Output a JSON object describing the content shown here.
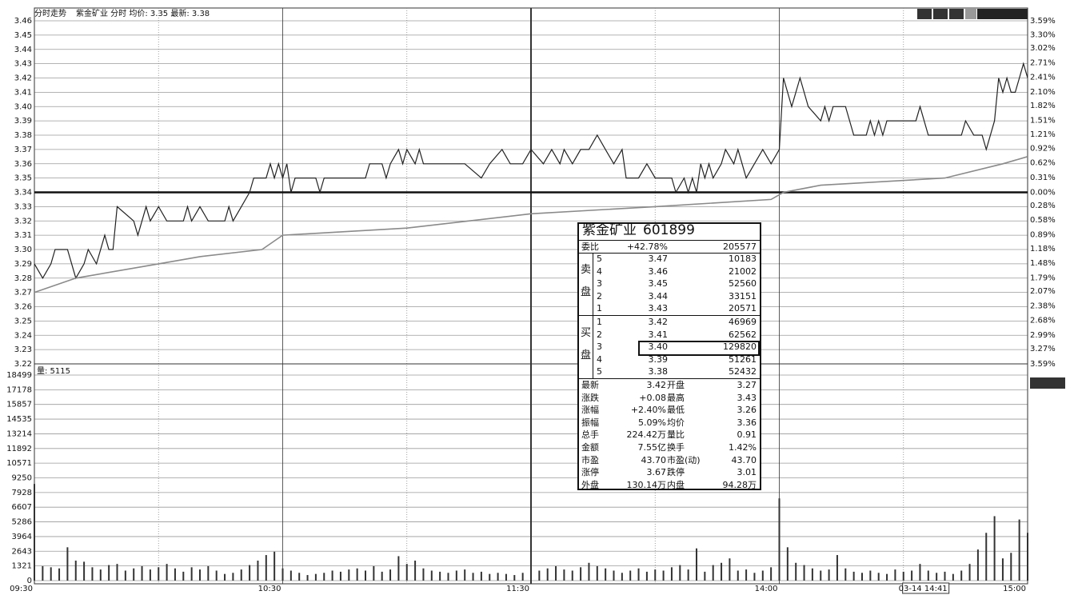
{
  "chart_data": [
    {
      "type": "line",
      "title": "分时走势",
      "subtitle": "紫金矿业 分时 均价: 3.35 最新: 3.38",
      "xlim": [
        0,
        240
      ],
      "ylim": [
        3.22,
        3.46
      ],
      "yticks": [
        3.22,
        3.23,
        3.24,
        3.25,
        3.26,
        3.27,
        3.28,
        3.29,
        {
          "value": 3.3,
          "label": "3.30"
        },
        3.31,
        3.32,
        3.33,
        3.34,
        3.35,
        3.36,
        3.37,
        3.38,
        3.39,
        {
          "value": 3.4,
          "label": "3.40"
        },
        3.41,
        3.42,
        3.43,
        3.44,
        3.45,
        3.46
      ],
      "y2lim": [
        -3.59,
        3.59
      ],
      "y2ticks": [
        {
          "value": -3.59,
          "label": "3.59%"
        },
        {
          "value": -3.27,
          "label": "3.27%"
        },
        {
          "value": -2.99,
          "label": "2.99%"
        },
        {
          "value": -2.68,
          "label": "2.68%"
        },
        {
          "value": -2.38,
          "label": "2.38%"
        },
        {
          "value": -2.07,
          "label": "2.07%"
        },
        {
          "value": -1.79,
          "label": "1.79%"
        },
        {
          "value": -1.48,
          "label": "1.48%"
        },
        {
          "value": -1.18,
          "label": "1.18%"
        },
        {
          "value": -0.89,
          "label": "0.89%"
        },
        {
          "value": -0.58,
          "label": "0.58%"
        },
        {
          "value": -0.28,
          "label": "0.28%"
        },
        {
          "value": 0,
          "label": "0.00%"
        },
        {
          "value": 0.31,
          "label": "0.31%"
        },
        {
          "value": 0.62,
          "label": "0.62%"
        },
        {
          "value": 0.92,
          "label": "0.92%"
        },
        {
          "value": 1.21,
          "label": "1.21%"
        },
        {
          "value": 1.51,
          "label": "1.51%"
        },
        {
          "value": 1.82,
          "label": "1.82%"
        },
        {
          "value": 2.1,
          "label": "2.10%"
        },
        {
          "value": 2.41,
          "label": "2.41%"
        },
        {
          "value": 2.71,
          "label": "2.71%"
        },
        {
          "value": 3.02,
          "label": "3.02%"
        },
        {
          "value": 3.3,
          "label": "3.30%"
        },
        {
          "value": 3.59,
          "label": "3.59%"
        }
      ],
      "reference_line": 3.34,
      "grid": true,
      "series": [
        {
          "color": "#222222",
          "x": [
            0,
            2,
            4,
            5,
            8,
            10,
            12,
            13,
            15,
            17,
            18,
            19,
            20,
            24,
            25,
            27,
            28,
            30,
            32,
            36,
            37,
            38,
            40,
            42,
            46,
            47,
            48,
            50,
            52,
            53,
            56,
            57,
            58,
            59,
            60,
            61,
            62,
            63,
            68,
            69,
            70,
            80,
            81,
            84,
            85,
            86,
            88,
            89,
            90,
            92,
            93,
            94,
            104,
            108,
            110,
            113,
            115,
            118,
            120,
            123,
            125,
            127,
            128,
            130,
            132,
            134,
            136,
            138,
            140,
            142,
            143,
            146,
            148,
            150,
            154,
            155,
            157,
            158,
            159,
            160,
            161,
            162,
            163,
            164,
            166,
            167,
            169,
            170,
            172,
            174,
            176,
            178,
            180,
            181,
            183,
            185,
            187,
            190,
            191,
            192,
            193,
            196,
            198,
            201,
            202,
            203,
            204,
            205,
            206,
            213,
            214,
            216,
            224,
            225,
            227,
            229,
            230,
            232,
            233,
            234,
            235,
            236,
            237,
            238,
            239,
            240
          ],
          "values": [
            3.29,
            3.28,
            3.29,
            3.3,
            3.3,
            3.28,
            3.29,
            3.3,
            3.29,
            3.31,
            3.3,
            3.3,
            3.33,
            3.32,
            3.31,
            3.33,
            3.32,
            3.33,
            3.32,
            3.32,
            3.33,
            3.32,
            3.33,
            3.32,
            3.32,
            3.33,
            3.32,
            3.33,
            3.34,
            3.35,
            3.35,
            3.36,
            3.35,
            3.36,
            3.35,
            3.36,
            3.34,
            3.35,
            3.35,
            3.34,
            3.35,
            3.35,
            3.36,
            3.36,
            3.35,
            3.36,
            3.37,
            3.36,
            3.37,
            3.36,
            3.37,
            3.36,
            3.36,
            3.35,
            3.36,
            3.37,
            3.36,
            3.36,
            3.37,
            3.36,
            3.37,
            3.36,
            3.37,
            3.36,
            3.37,
            3.37,
            3.38,
            3.37,
            3.36,
            3.37,
            3.35,
            3.35,
            3.36,
            3.35,
            3.35,
            3.34,
            3.35,
            3.34,
            3.35,
            3.34,
            3.36,
            3.35,
            3.36,
            3.35,
            3.36,
            3.37,
            3.36,
            3.37,
            3.35,
            3.36,
            3.37,
            3.36,
            3.37,
            3.42,
            3.4,
            3.42,
            3.4,
            3.39,
            3.4,
            3.39,
            3.4,
            3.4,
            3.38,
            3.38,
            3.39,
            3.38,
            3.39,
            3.38,
            3.39,
            3.39,
            3.4,
            3.38,
            3.38,
            3.39,
            3.38,
            3.38,
            3.37,
            3.39,
            3.42,
            3.41,
            3.42,
            3.41,
            3.41,
            3.42,
            3.43,
            3.42
          ]
        },
        {
          "color": "#8a8a8a",
          "x": [
            0,
            10,
            30,
            40,
            55,
            60,
            90,
            120,
            150,
            178,
            181,
            190,
            220,
            234,
            240
          ],
          "values": [
            3.27,
            3.28,
            3.29,
            3.295,
            3.3,
            3.31,
            3.315,
            3.325,
            3.33,
            3.335,
            3.34,
            3.345,
            3.35,
            3.36,
            3.365
          ]
        }
      ],
      "cursor": {
        "x": 221,
        "label": "03-14 14:41"
      }
    },
    {
      "type": "bar",
      "title": "量: 5115",
      "color": "#333333",
      "xlim": [
        0,
        240
      ],
      "xticks": [
        {
          "value": 0,
          "label": "09:30"
        },
        {
          "value": 60,
          "label": "10:30"
        },
        {
          "value": 120,
          "label": "11:30"
        },
        {
          "value": 180,
          "label": "14:00"
        },
        {
          "value": 240,
          "label": "15:00"
        }
      ],
      "ylim": [
        0,
        18499
      ],
      "yticks": [
        0,
        1321,
        2643,
        3964,
        5286,
        6607,
        7928,
        9250,
        10571,
        11892,
        13214,
        14535,
        15857,
        17178,
        18499
      ],
      "x": [
        0,
        2,
        4,
        6,
        8,
        10,
        12,
        14,
        16,
        18,
        20,
        22,
        24,
        26,
        28,
        30,
        32,
        34,
        36,
        38,
        40,
        42,
        44,
        46,
        48,
        50,
        52,
        54,
        56,
        58,
        60,
        62,
        64,
        66,
        68,
        70,
        72,
        74,
        76,
        78,
        80,
        82,
        84,
        86,
        88,
        90,
        92,
        94,
        96,
        98,
        100,
        102,
        104,
        106,
        108,
        110,
        112,
        114,
        116,
        118,
        120,
        122,
        124,
        126,
        128,
        130,
        132,
        134,
        136,
        138,
        140,
        142,
        144,
        146,
        148,
        150,
        152,
        154,
        156,
        158,
        160,
        162,
        164,
        166,
        168,
        170,
        172,
        174,
        176,
        178,
        180,
        182,
        184,
        186,
        188,
        190,
        192,
        194,
        196,
        198,
        200,
        202,
        204,
        206,
        208,
        210,
        212,
        214,
        216,
        218,
        220,
        222,
        224,
        226,
        228,
        230,
        232,
        234,
        236,
        238,
        240
      ],
      "values": [
        8700,
        1300,
        1200,
        1100,
        3000,
        1800,
        1700,
        1200,
        1000,
        1400,
        1500,
        900,
        1100,
        1300,
        1000,
        1200,
        1500,
        1100,
        800,
        1200,
        1000,
        1300,
        900,
        600,
        700,
        1000,
        1400,
        1800,
        2300,
        2600,
        1100,
        900,
        700,
        500,
        600,
        700,
        900,
        800,
        1000,
        1100,
        900,
        1300,
        800,
        1000,
        2200,
        1500,
        1800,
        1100,
        900,
        800,
        700,
        900,
        1000,
        700,
        800,
        600,
        700,
        600,
        500,
        700,
        1300,
        900,
        1100,
        1300,
        1000,
        900,
        1200,
        1600,
        1300,
        1100,
        900,
        700,
        900,
        1100,
        800,
        1000,
        900,
        1200,
        1400,
        1000,
        2900,
        800,
        1400,
        1600,
        2000,
        900,
        1000,
        700,
        900,
        1200,
        7400,
        3000,
        1600,
        1400,
        1100,
        900,
        1000,
        2300,
        1100,
        800,
        700,
        900,
        700,
        600,
        1000,
        800,
        900,
        1500,
        900,
        700,
        800,
        600,
        900,
        1500,
        2800,
        4300,
        5800,
        2000,
        2500,
        5500,
        4300
      ]
    }
  ],
  "quote_panel": {
    "name": "紫金矿业",
    "code": "601899",
    "ratio": [
      "委比",
      "+42.78%",
      "205577"
    ],
    "sell_label": [
      "卖",
      "盘"
    ],
    "sell": [
      [
        "5",
        "3.47",
        "10183"
      ],
      [
        "4",
        "3.46",
        "21002"
      ],
      [
        "3",
        "3.45",
        "52560"
      ],
      [
        "2",
        "3.44",
        "33151"
      ],
      [
        "1",
        "3.43",
        "20571"
      ]
    ],
    "buy_label": [
      "买",
      "盘"
    ],
    "buy": [
      [
        "1",
        "3.42",
        "46969"
      ],
      [
        "2",
        "3.41",
        "62562"
      ],
      [
        "3",
        "3.40",
        "129820"
      ],
      [
        "4",
        "3.39",
        "51261"
      ],
      [
        "5",
        "3.38",
        "52432"
      ]
    ],
    "stats": [
      [
        "最新",
        "3.42",
        "开盘",
        "3.27"
      ],
      [
        "涨跌",
        "+0.08",
        "最高",
        "3.43"
      ],
      [
        "涨幅",
        "+2.40%",
        "最低",
        "3.26"
      ],
      [
        "振幅",
        "5.09%",
        "均价",
        "3.36"
      ],
      [
        "总手",
        "224.42万",
        "量比",
        "0.91"
      ],
      [
        "金额",
        "7.55亿",
        "换手",
        "1.42%"
      ],
      [
        "市盈",
        "43.70",
        "市盈(动)",
        "43.70"
      ],
      [
        "涨停",
        "3.67",
        "跌停",
        "3.01"
      ],
      [
        "外盘",
        "130.14万",
        "内盘",
        "94.28万"
      ]
    ]
  }
}
